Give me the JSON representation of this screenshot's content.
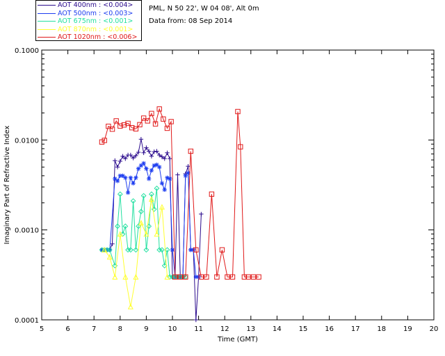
{
  "header": {
    "location": "PML, N 50 22', W 04 08', Alt 0m",
    "date": "Data from: 08 Sep 2014"
  },
  "legend": [
    {
      "label": "AOT  400nm : <0.004>",
      "color": "#2a0a8c"
    },
    {
      "label": "AOT  500nm : <0.003>",
      "color": "#1c3cf0"
    },
    {
      "label": "AOT  675nm : <0.001>",
      "color": "#22e0a0"
    },
    {
      "label": "AOT  870nm : <0.001>",
      "color": "#ffff30"
    },
    {
      "label": "AOT 1020nm : <0.006>",
      "color": "#e01818"
    }
  ],
  "chart_data": {
    "type": "line",
    "title": "",
    "xlabel": "Time (GMT)",
    "ylabel": "Imaginary Part of Refractive Index",
    "xlim": [
      5,
      20
    ],
    "ylim": [
      0.0001,
      0.1
    ],
    "yscale": "log",
    "x_ticks": [
      "5",
      "6",
      "7",
      "8",
      "9",
      "10",
      "11",
      "12",
      "13",
      "14",
      "15",
      "16",
      "17",
      "18",
      "19",
      "20"
    ],
    "y_ticks": [
      "0.0001",
      "0.0010",
      "0.0100",
      "0.1000"
    ],
    "series": [
      {
        "name": "AOT  400nm : <0.004>",
        "color": "#2a0a8c",
        "marker": "plus",
        "x": [
          7.3,
          7.4,
          7.5,
          7.6,
          7.7,
          7.8,
          7.9,
          8.0,
          8.1,
          8.2,
          8.3,
          8.4,
          8.5,
          8.6,
          8.7,
          8.8,
          8.9,
          9.0,
          9.1,
          9.2,
          9.3,
          9.4,
          9.5,
          9.6,
          9.7,
          9.8,
          9.9,
          10.0,
          10.1,
          10.2,
          10.3,
          10.4,
          10.5,
          10.6,
          10.7,
          10.8,
          10.9,
          11.0,
          11.1
        ],
        "y": [
          0.0006,
          0.0006,
          0.0006,
          0.0006,
          0.0007,
          0.0059,
          0.005,
          0.0058,
          0.0066,
          0.0062,
          0.0068,
          0.0068,
          0.0063,
          0.0067,
          0.0073,
          0.0102,
          0.0072,
          0.0082,
          0.0075,
          0.0066,
          0.0074,
          0.0075,
          0.0068,
          0.0065,
          0.0062,
          0.0072,
          0.0062,
          0.0003,
          0.0003,
          0.0041,
          0.0003,
          0.0003,
          0.0042,
          0.0051,
          0.0006,
          0.0006,
          0.0001,
          0.0003,
          0.0015
        ]
      },
      {
        "name": "AOT  500nm : <0.003>",
        "color": "#1c3cf0",
        "marker": "star",
        "x": [
          7.3,
          7.4,
          7.5,
          7.6,
          7.8,
          7.9,
          8.0,
          8.1,
          8.2,
          8.3,
          8.4,
          8.5,
          8.6,
          8.7,
          8.8,
          8.9,
          9.0,
          9.1,
          9.2,
          9.3,
          9.4,
          9.5,
          9.6,
          9.7,
          9.8,
          9.9,
          10.0,
          10.1,
          10.2,
          10.3,
          10.4,
          10.5,
          10.6,
          10.7,
          10.8,
          10.9,
          11.0
        ],
        "y": [
          0.0006,
          0.0006,
          0.0006,
          0.0006,
          0.0037,
          0.0035,
          0.004,
          0.004,
          0.0038,
          0.0026,
          0.0038,
          0.0033,
          0.0038,
          0.0048,
          0.0052,
          0.0055,
          0.0048,
          0.0037,
          0.0046,
          0.0052,
          0.0053,
          0.005,
          0.0033,
          0.0028,
          0.0038,
          0.0037,
          0.0006,
          0.0003,
          0.0003,
          0.0003,
          0.0003,
          0.004,
          0.0043,
          0.0006,
          0.0006,
          0.0003,
          0.0003
        ]
      },
      {
        "name": "AOT  675nm : <0.001>",
        "color": "#22e0a0",
        "marker": "diamond",
        "x": [
          7.3,
          7.4,
          7.5,
          7.6,
          7.8,
          7.9,
          8.0,
          8.1,
          8.2,
          8.3,
          8.4,
          8.5,
          8.6,
          8.7,
          8.8,
          8.9,
          9.0,
          9.1,
          9.2,
          9.3,
          9.4,
          9.5,
          9.6,
          9.7,
          9.8,
          9.9,
          10.0,
          10.1,
          10.2,
          10.3,
          10.4,
          10.5
        ],
        "y": [
          0.0006,
          0.0006,
          0.0006,
          0.0006,
          0.0004,
          0.0011,
          0.0025,
          0.0009,
          0.0011,
          0.0006,
          0.0006,
          0.0021,
          0.0006,
          0.0011,
          0.0016,
          0.0024,
          0.0006,
          0.0011,
          0.0025,
          0.0017,
          0.0029,
          0.0006,
          0.0006,
          0.0004,
          0.0006,
          0.0003,
          0.0003,
          0.0003,
          0.0003,
          0.0003,
          0.0003,
          0.0003
        ]
      },
      {
        "name": "AOT  870nm : <0.001>",
        "color": "#ffff30",
        "marker": "triangle",
        "x": [
          7.4,
          7.6,
          7.8,
          8.0,
          8.2,
          8.4,
          8.6,
          8.8,
          9.0,
          9.2,
          9.4,
          9.6,
          9.8
        ],
        "y": [
          0.0006,
          0.0005,
          0.0003,
          0.0009,
          0.0003,
          0.00014,
          0.0003,
          0.0012,
          0.0009,
          0.0022,
          0.0009,
          0.0018,
          0.0003
        ]
      },
      {
        "name": "AOT 1020nm : <0.006>",
        "color": "#e01818",
        "marker": "square",
        "x": [
          7.3,
          7.4,
          7.55,
          7.7,
          7.85,
          8.0,
          8.15,
          8.3,
          8.45,
          8.6,
          8.75,
          8.9,
          9.05,
          9.2,
          9.35,
          9.5,
          9.65,
          9.8,
          9.95,
          10.1,
          10.3,
          10.5,
          10.7,
          10.9,
          11.1,
          11.3,
          11.5,
          11.7,
          11.9,
          12.1,
          12.3,
          12.5,
          12.6,
          12.75,
          12.9,
          13.1,
          13.3
        ],
        "y": [
          0.0095,
          0.0099,
          0.0142,
          0.0132,
          0.0163,
          0.0143,
          0.0147,
          0.0153,
          0.0137,
          0.0133,
          0.0148,
          0.0175,
          0.0163,
          0.0197,
          0.0151,
          0.0221,
          0.0171,
          0.0135,
          0.016,
          0.0003,
          0.0003,
          0.0003,
          0.0075,
          0.0006,
          0.0003,
          0.0003,
          0.0025,
          0.0003,
          0.0006,
          0.0003,
          0.0003,
          0.0207,
          0.0084,
          0.0003,
          0.0003,
          0.0003,
          0.0003
        ]
      }
    ]
  }
}
